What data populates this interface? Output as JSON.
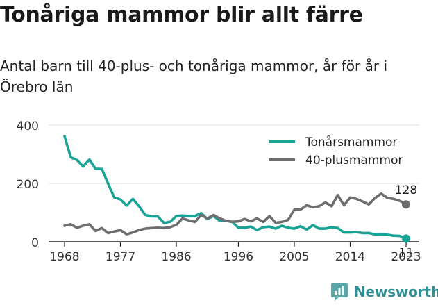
{
  "title": "Tonåriga mammor blir allt färre",
  "subtitle": "Antal barn till 40-plus- och tonåriga mammor, år för år i Örebro län",
  "brand": {
    "name": "Newsworthy",
    "color": "#2f8f95",
    "icon": "newsworthy-logo-icon"
  },
  "colors": {
    "teen": "#19a395",
    "plus40": "#6e6e70",
    "axis": "#222222",
    "grid": "#dddddd"
  },
  "chart_data": {
    "type": "line",
    "title": "Tonåriga mammor blir allt färre",
    "subtitle": "Antal barn till 40-plus- och tonåriga mammor, år för år i Örebro län",
    "xlabel": "",
    "ylabel": "",
    "xlim": [
      1968,
      2023
    ],
    "ylim": [
      0,
      400
    ],
    "y_ticks": [
      0,
      200,
      400
    ],
    "x_ticks": [
      1968,
      1977,
      1986,
      1996,
      2005,
      2014,
      2023
    ],
    "x_tick_labels": [
      "1968",
      "1977",
      "1986",
      "1996",
      "2005",
      "2014",
      "2023"
    ],
    "grid": true,
    "legend_position": "top-right",
    "x": [
      1968,
      1969,
      1970,
      1971,
      1972,
      1973,
      1974,
      1975,
      1976,
      1977,
      1978,
      1979,
      1980,
      1981,
      1982,
      1983,
      1984,
      1985,
      1986,
      1987,
      1988,
      1989,
      1990,
      1991,
      1992,
      1993,
      1994,
      1995,
      1996,
      1997,
      1998,
      1999,
      2000,
      2001,
      2002,
      2003,
      2004,
      2005,
      2006,
      2007,
      2008,
      2009,
      2010,
      2011,
      2012,
      2013,
      2014,
      2015,
      2016,
      2017,
      2018,
      2019,
      2020,
      2021,
      2022,
      2023
    ],
    "series": [
      {
        "name": "Tonårsmammor",
        "color": "#19a395",
        "values": [
          362,
          290,
          280,
          258,
          282,
          250,
          250,
          200,
          152,
          145,
          124,
          147,
          122,
          92,
          87,
          87,
          65,
          68,
          88,
          90,
          88,
          88,
          98,
          78,
          88,
          72,
          72,
          68,
          48,
          48,
          52,
          40,
          50,
          52,
          45,
          55,
          48,
          45,
          53,
          42,
          57,
          45,
          45,
          50,
          47,
          32,
          32,
          33,
          30,
          30,
          25,
          26,
          24,
          21,
          20,
          11
        ],
        "end_label": "11"
      },
      {
        "name": "40-plusmammor",
        "color": "#6e6e70",
        "values": [
          55,
          60,
          48,
          55,
          60,
          37,
          47,
          30,
          35,
          40,
          26,
          32,
          40,
          45,
          47,
          48,
          47,
          50,
          58,
          80,
          73,
          68,
          92,
          80,
          92,
          80,
          72,
          68,
          70,
          78,
          70,
          80,
          68,
          88,
          65,
          68,
          75,
          110,
          110,
          125,
          118,
          122,
          135,
          122,
          160,
          125,
          152,
          147,
          138,
          128,
          150,
          165,
          150,
          147,
          140,
          128
        ],
        "end_label": "128"
      }
    ]
  }
}
